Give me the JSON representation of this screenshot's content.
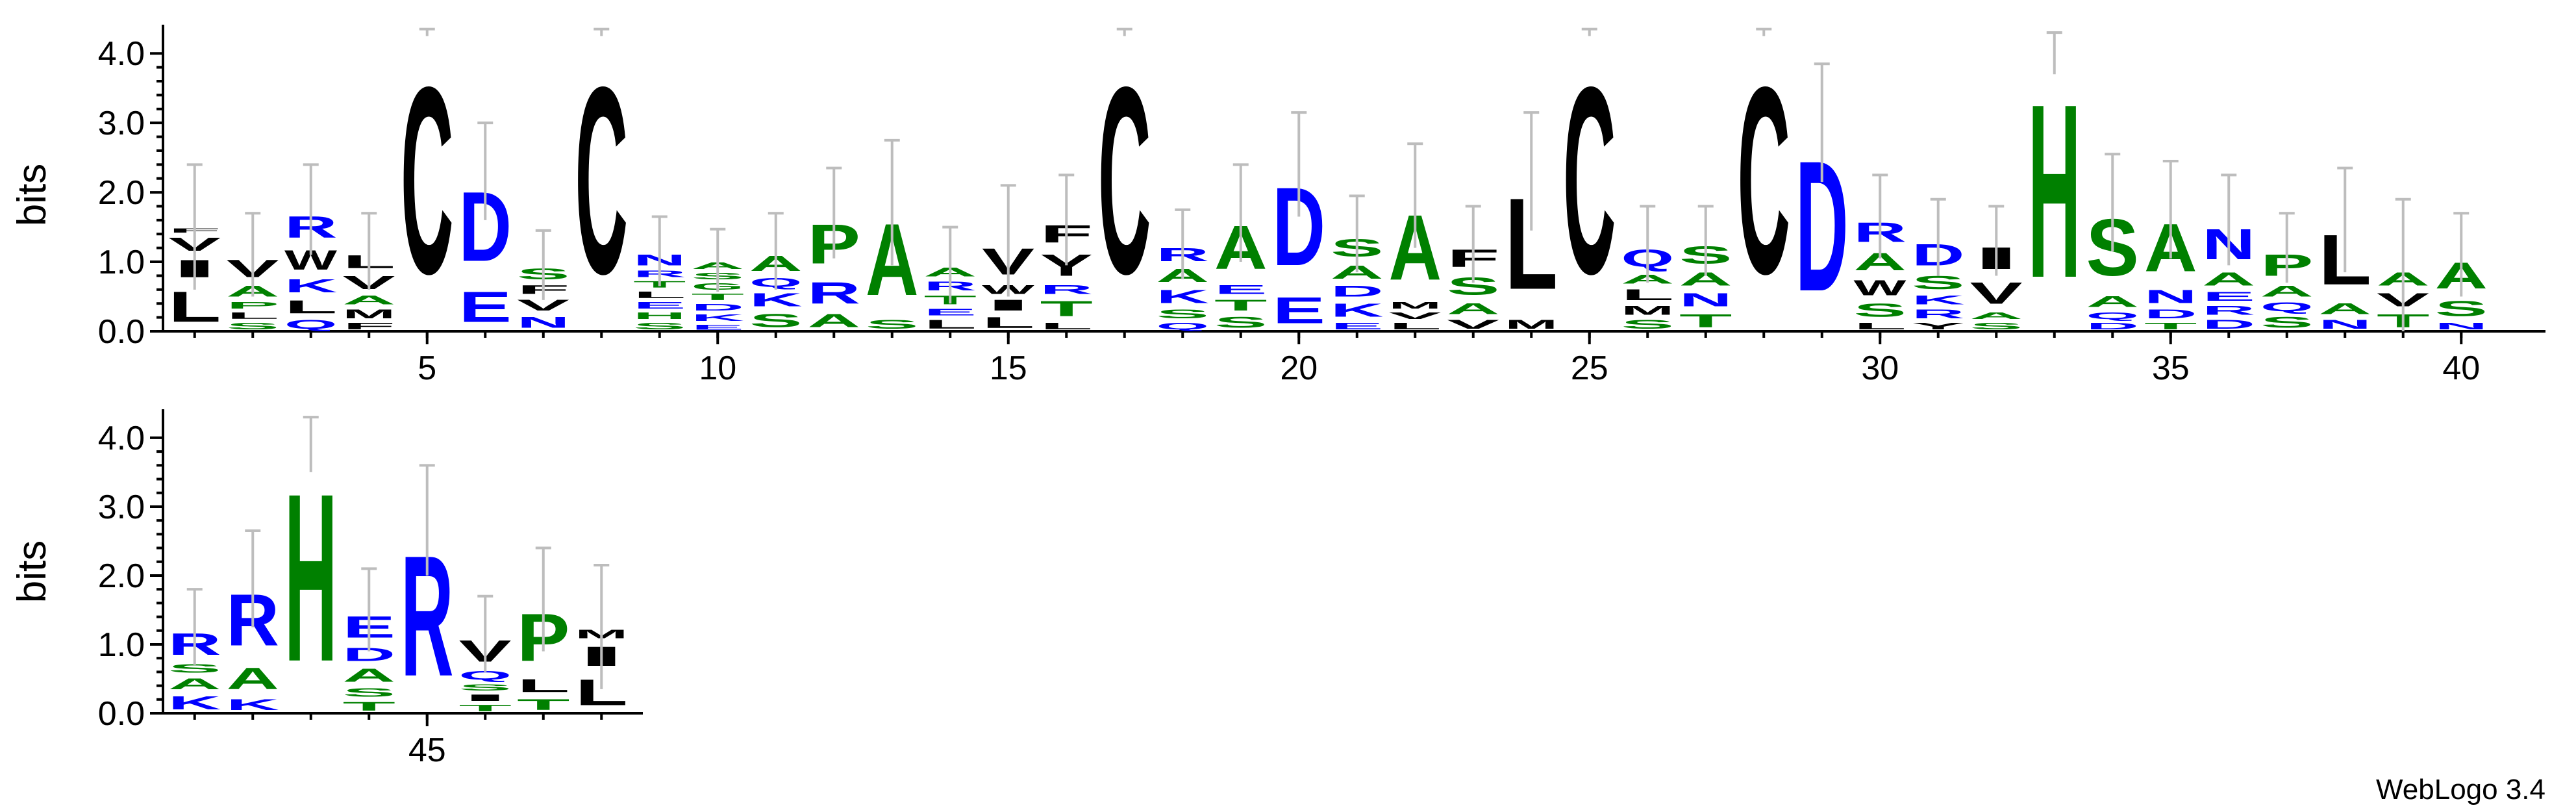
{
  "footer_text": "WebLogo 3.4",
  "colors": {
    "polar": "#008000",
    "basic": "#0000ff",
    "acidic": "#ff0000",
    "hydrophobic": "#000000",
    "neutral": "#800080",
    "errorbar": "#bdbdbd"
  },
  "chart_data": [
    {
      "type": "sequence-logo",
      "ylabel": "bits",
      "ylim": [
        0,
        4.32
      ],
      "yticks": [
        "0.0",
        "1.0",
        "2.0",
        "3.0",
        "4.0"
      ],
      "x_tick_labels": [
        "5",
        "10",
        "15",
        "20",
        "25",
        "30",
        "35",
        "40"
      ],
      "x_tick_positions": [
        5,
        10,
        15,
        20,
        25,
        30,
        35,
        40
      ],
      "first_position": 1,
      "positions": [
        {
          "pos": 1,
          "stack": [
            [
              "L",
              0.7
            ],
            [
              "I",
              0.4
            ],
            [
              "V",
              0.3
            ],
            [
              "F",
              0.1
            ]
          ],
          "err": 0.9
        },
        {
          "pos": 2,
          "stack": [
            [
              "S",
              0.15
            ],
            [
              "L",
              0.15
            ],
            [
              "P",
              0.15
            ],
            [
              "A",
              0.25
            ],
            [
              "V",
              0.4
            ]
          ],
          "err": 0.6
        },
        {
          "pos": 3,
          "stack": [
            [
              "Q",
              0.2
            ],
            [
              "L",
              0.3
            ],
            [
              "K",
              0.3
            ],
            [
              "W",
              0.45
            ],
            [
              "R",
              0.5
            ]
          ],
          "err": 0.65
        },
        {
          "pos": 4,
          "stack": [
            [
              "F",
              0.15
            ],
            [
              "M",
              0.2
            ],
            [
              "A",
              0.2
            ],
            [
              "V",
              0.3
            ],
            [
              "L",
              0.3
            ]
          ],
          "err": 0.55
        },
        {
          "pos": 5,
          "stack": [
            [
              "C",
              4.3
            ]
          ],
          "err": 0.05
        },
        {
          "pos": 6,
          "stack": [
            [
              "E",
              0.7
            ],
            [
              "D",
              1.6
            ]
          ],
          "err": 0.7
        },
        {
          "pos": 7,
          "stack": [
            [
              "N",
              0.25
            ],
            [
              "V",
              0.25
            ],
            [
              "F",
              0.2
            ],
            [
              "S",
              0.25
            ]
          ],
          "err": 0.5
        },
        {
          "pos": 8,
          "stack": [
            [
              "C",
              4.3
            ]
          ],
          "err": 0.05
        },
        {
          "pos": 9,
          "stack": [
            [
              "S",
              0.15
            ],
            [
              "H",
              0.15
            ],
            [
              "E",
              0.15
            ],
            [
              "L",
              0.15
            ],
            [
              "T",
              0.15
            ],
            [
              "R",
              0.15
            ],
            [
              "N",
              0.25
            ]
          ],
          "err": 0.5
        },
        {
          "pos": 10,
          "stack": [
            [
              "E",
              0.12
            ],
            [
              "K",
              0.15
            ],
            [
              "D",
              0.15
            ],
            [
              "T",
              0.15
            ],
            [
              "G",
              0.15
            ],
            [
              "S",
              0.15
            ],
            [
              "A",
              0.15
            ]
          ],
          "err": 0.45
        },
        {
          "pos": 11,
          "stack": [
            [
              "S",
              0.3
            ],
            [
              "K",
              0.3
            ],
            [
              "Q",
              0.2
            ],
            [
              "A",
              0.35
            ]
          ],
          "err": 0.55
        },
        {
          "pos": 12,
          "stack": [
            [
              "A",
              0.3
            ],
            [
              "R",
              0.5
            ],
            [
              "P",
              0.9
            ]
          ],
          "err": 0.65
        },
        {
          "pos": 13,
          "stack": [
            [
              "S",
              0.2
            ],
            [
              "A",
              1.65
            ]
          ],
          "err": 0.9
        },
        {
          "pos": 14,
          "stack": [
            [
              "L",
              0.2
            ],
            [
              "E",
              0.15
            ],
            [
              "T",
              0.2
            ],
            [
              "R",
              0.2
            ],
            [
              "A",
              0.2
            ]
          ],
          "err": 0.55
        },
        {
          "pos": 15,
          "stack": [
            [
              "L",
              0.25
            ],
            [
              "I",
              0.25
            ],
            [
              "W",
              0.2
            ],
            [
              "V",
              0.6
            ]
          ],
          "err": 0.8
        },
        {
          "pos": 16,
          "stack": [
            [
              "L",
              0.15
            ],
            [
              "T",
              0.35
            ],
            [
              "R",
              0.2
            ],
            [
              "Y",
              0.5
            ],
            [
              "F",
              0.4
            ]
          ],
          "err": 0.65
        },
        {
          "pos": 17,
          "stack": [
            [
              "C",
              4.3
            ]
          ],
          "err": 0.05
        },
        {
          "pos": 18,
          "stack": [
            [
              "Q",
              0.15
            ],
            [
              "S",
              0.2
            ],
            [
              "K",
              0.3
            ],
            [
              "A",
              0.3
            ],
            [
              "R",
              0.3
            ]
          ],
          "err": 0.5
        },
        {
          "pos": 19,
          "stack": [
            [
              "S",
              0.25
            ],
            [
              "T",
              0.25
            ],
            [
              "E",
              0.2
            ],
            [
              "A",
              1.0
            ]
          ],
          "err": 0.7
        },
        {
          "pos": 20,
          "stack": [
            [
              "E",
              0.6
            ],
            [
              "D",
              1.8
            ]
          ],
          "err": 0.75
        },
        {
          "pos": 21,
          "stack": [
            [
              "E",
              0.15
            ],
            [
              "K",
              0.3
            ],
            [
              "D",
              0.25
            ],
            [
              "A",
              0.3
            ],
            [
              "S",
              0.4
            ]
          ],
          "err": 0.55
        },
        {
          "pos": 22,
          "stack": [
            [
              "L",
              0.15
            ],
            [
              "V",
              0.15
            ],
            [
              "M",
              0.15
            ],
            [
              "A",
              1.5
            ]
          ],
          "err": 0.75
        },
        {
          "pos": 23,
          "stack": [
            [
              "V",
              0.2
            ],
            [
              "A",
              0.25
            ],
            [
              "S",
              0.4
            ],
            [
              "F",
              0.4
            ]
          ],
          "err": 0.55
        },
        {
          "pos": 24,
          "stack": [
            [
              "M",
              0.2
            ],
            [
              "L",
              2.1
            ]
          ],
          "err": 0.85
        },
        {
          "pos": 25,
          "stack": [
            [
              "C",
              4.3
            ]
          ],
          "err": 0.05
        },
        {
          "pos": 26,
          "stack": [
            [
              "S",
              0.2
            ],
            [
              "M",
              0.2
            ],
            [
              "L",
              0.25
            ],
            [
              "A",
              0.2
            ],
            [
              "Q",
              0.4
            ]
          ],
          "err": 0.55
        },
        {
          "pos": 27,
          "stack": [
            [
              "T",
              0.3
            ],
            [
              "N",
              0.3
            ],
            [
              "A",
              0.3
            ],
            [
              "S",
              0.4
            ]
          ],
          "err": 0.5
        },
        {
          "pos": 28,
          "stack": [
            [
              "C",
              4.3
            ]
          ],
          "err": 0.05
        },
        {
          "pos": 29,
          "stack": [
            [
              "D",
              3.0
            ]
          ],
          "err": 0.85
        },
        {
          "pos": 30,
          "stack": [
            [
              "L",
              0.15
            ],
            [
              "S",
              0.3
            ],
            [
              "W",
              0.35
            ],
            [
              "A",
              0.4
            ],
            [
              "R",
              0.45
            ]
          ],
          "err": 0.6
        },
        {
          "pos": 31,
          "stack": [
            [
              "Y",
              0.15
            ],
            [
              "R",
              0.2
            ],
            [
              "K",
              0.2
            ],
            [
              "S",
              0.3
            ],
            [
              "D",
              0.5
            ]
          ],
          "err": 0.55
        },
        {
          "pos": 32,
          "stack": [
            [
              "S",
              0.15
            ],
            [
              "A",
              0.15
            ],
            [
              "V",
              0.5
            ],
            [
              "I",
              0.5
            ]
          ],
          "err": 0.5
        },
        {
          "pos": 33,
          "stack": [
            [
              "H",
              4.0
            ]
          ],
          "err": 0.3
        },
        {
          "pos": 34,
          "stack": [
            [
              "D",
              0.15
            ],
            [
              "Q",
              0.15
            ],
            [
              "A",
              0.25
            ],
            [
              "S",
              1.3
            ]
          ],
          "err": 0.7
        },
        {
          "pos": 35,
          "stack": [
            [
              "T",
              0.15
            ],
            [
              "D",
              0.2
            ],
            [
              "N",
              0.3
            ],
            [
              "A",
              1.1
            ]
          ],
          "err": 0.7
        },
        {
          "pos": 36,
          "stack": [
            [
              "D",
              0.2
            ],
            [
              "R",
              0.2
            ],
            [
              "E",
              0.2
            ],
            [
              "A",
              0.3
            ],
            [
              "N",
              0.7
            ]
          ],
          "err": 0.65
        },
        {
          "pos": 37,
          "stack": [
            [
              "S",
              0.25
            ],
            [
              "Q",
              0.2
            ],
            [
              "A",
              0.25
            ],
            [
              "P",
              0.5
            ]
          ],
          "err": 0.5
        },
        {
          "pos": 38,
          "stack": [
            [
              "N",
              0.2
            ],
            [
              "A",
              0.25
            ],
            [
              "L",
              1.15
            ]
          ],
          "err": 0.75
        },
        {
          "pos": 39,
          "stack": [
            [
              "T",
              0.3
            ],
            [
              "V",
              0.3
            ],
            [
              "A",
              0.3
            ]
          ],
          "err": 1.0
        },
        {
          "pos": 40,
          "stack": [
            [
              "N",
              0.15
            ],
            [
              "S",
              0.35
            ],
            [
              "A",
              0.6
            ]
          ],
          "err": 0.6
        }
      ]
    },
    {
      "type": "sequence-logo",
      "ylabel": "bits",
      "ylim": [
        0,
        4.32
      ],
      "yticks": [
        "0.0",
        "1.0",
        "2.0",
        "3.0",
        "4.0"
      ],
      "x_tick_labels": [
        "45"
      ],
      "x_tick_positions": [
        45
      ],
      "first_position": 41,
      "positions": [
        {
          "pos": 41,
          "stack": [
            [
              "K",
              0.3
            ],
            [
              "A",
              0.25
            ],
            [
              "S",
              0.2
            ],
            [
              "R",
              0.5
            ]
          ],
          "err": 0.55
        },
        {
          "pos": 42,
          "stack": [
            [
              "K",
              0.25
            ],
            [
              "A",
              0.5
            ],
            [
              "R",
              1.2
            ]
          ],
          "err": 0.7
        },
        {
          "pos": 43,
          "stack": [
            [
              "H",
              3.9
            ]
          ],
          "err": 0.4
        },
        {
          "pos": 44,
          "stack": [
            [
              "T",
              0.2
            ],
            [
              "S",
              0.2
            ],
            [
              "A",
              0.3
            ],
            [
              "D",
              0.3
            ],
            [
              "E",
              0.5
            ]
          ],
          "err": 0.6
        },
        {
          "pos": 45,
          "stack": [
            [
              "R",
              2.8
            ]
          ],
          "err": 0.8
        },
        {
          "pos": 46,
          "stack": [
            [
              "T",
              0.15
            ],
            [
              "I",
              0.15
            ],
            [
              "S",
              0.15
            ],
            [
              "Q",
              0.2
            ],
            [
              "V",
              0.5
            ]
          ],
          "err": 0.55
        },
        {
          "pos": 47,
          "stack": [
            [
              "T",
              0.25
            ],
            [
              "L",
              0.3
            ],
            [
              "P",
              1.1
            ]
          ],
          "err": 0.75
        },
        {
          "pos": 48,
          "stack": [
            [
              "L",
              0.6
            ],
            [
              "I",
              0.45
            ],
            [
              "M",
              0.2
            ]
          ],
          "err": 0.9
        }
      ]
    }
  ]
}
